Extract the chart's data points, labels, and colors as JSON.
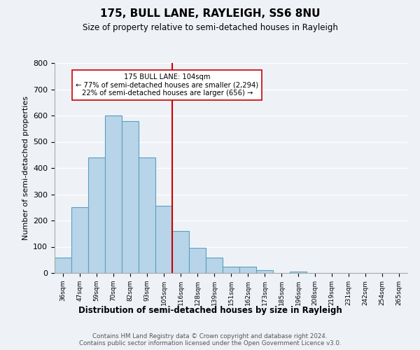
{
  "title": "175, BULL LANE, RAYLEIGH, SS6 8NU",
  "subtitle": "Size of property relative to semi-detached houses in Rayleigh",
  "xlabel": "Distribution of semi-detached houses by size in Rayleigh",
  "ylabel": "Number of semi-detached properties",
  "bin_labels": [
    "36sqm",
    "47sqm",
    "59sqm",
    "70sqm",
    "82sqm",
    "93sqm",
    "105sqm",
    "116sqm",
    "128sqm",
    "139sqm",
    "151sqm",
    "162sqm",
    "173sqm",
    "185sqm",
    "196sqm",
    "208sqm",
    "219sqm",
    "231sqm",
    "242sqm",
    "254sqm",
    "265sqm"
  ],
  "bar_heights": [
    60,
    250,
    440,
    600,
    580,
    440,
    255,
    160,
    97,
    60,
    24,
    24,
    10,
    0,
    5,
    0,
    0,
    0,
    0,
    0,
    0
  ],
  "bar_color": "#b8d4e8",
  "bar_edge_color": "#5a9fc0",
  "vline_x": 6.5,
  "vline_color": "#cc0000",
  "annotation_text": "175 BULL LANE: 104sqm\n← 77% of semi-detached houses are smaller (2,294)\n22% of semi-detached houses are larger (656) →",
  "annotation_box_color": "#ffffff",
  "annotation_box_edge": "#cc0000",
  "ylim": [
    0,
    800
  ],
  "yticks": [
    0,
    100,
    200,
    300,
    400,
    500,
    600,
    700,
    800
  ],
  "footer_text": "Contains HM Land Registry data © Crown copyright and database right 2024.\nContains public sector information licensed under the Open Government Licence v3.0.",
  "bg_color": "#eef2f7"
}
